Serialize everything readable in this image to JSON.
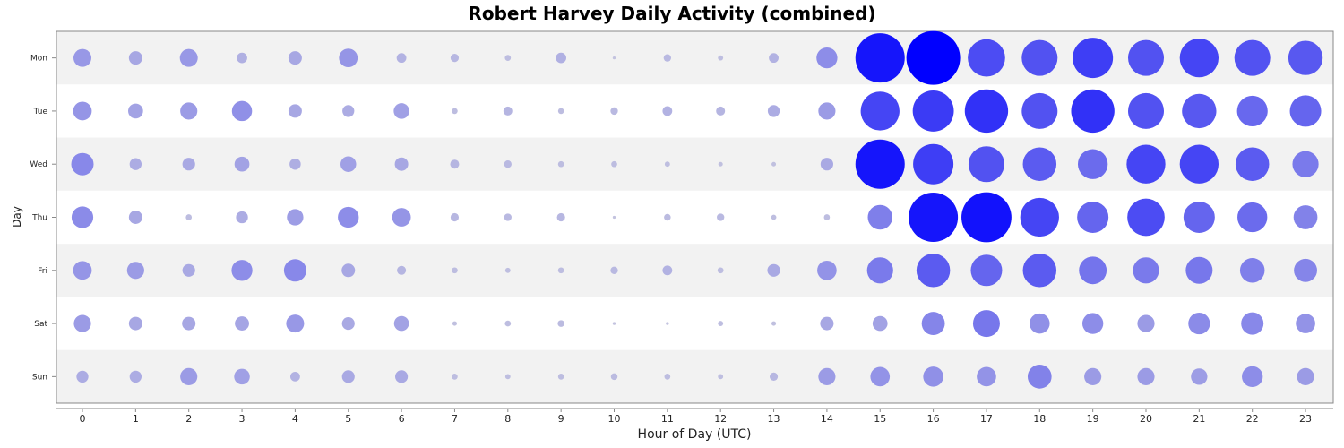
{
  "chart_data": {
    "type": "bubble",
    "title": "Robert Harvey Daily Activity (combined)",
    "xlabel": "Hour of Day (UTC)",
    "ylabel": "Day",
    "x_categories": [
      "0",
      "1",
      "2",
      "3",
      "4",
      "5",
      "6",
      "7",
      "8",
      "9",
      "10",
      "11",
      "12",
      "13",
      "14",
      "15",
      "16",
      "17",
      "18",
      "19",
      "20",
      "21",
      "22",
      "23"
    ],
    "y_categories": [
      "Mon",
      "Tue",
      "Wed",
      "Thu",
      "Fri",
      "Sat",
      "Sun"
    ],
    "grid": false,
    "values": [
      [
        24,
        18,
        24,
        14,
        18,
        25,
        13,
        11,
        8,
        14,
        4,
        10,
        7,
        13,
        28,
        66,
        72,
        50,
        48,
        54,
        48,
        52,
        48,
        46
      ],
      [
        25,
        20,
        23,
        27,
        18,
        16,
        21,
        8,
        12,
        8,
        10,
        13,
        12,
        16,
        23,
        52,
        55,
        58,
        48,
        58,
        48,
        46,
        41,
        42
      ],
      [
        30,
        16,
        17,
        20,
        15,
        21,
        18,
        12,
        10,
        8,
        8,
        7,
        6,
        6,
        17,
        66,
        54,
        48,
        45,
        40,
        52,
        52,
        45,
        35
      ],
      [
        29,
        18,
        8,
        16,
        22,
        28,
        25,
        11,
        10,
        11,
        4,
        9,
        10,
        7,
        8,
        33,
        66,
        67,
        52,
        42,
        50,
        42,
        40,
        32
      ],
      [
        25,
        23,
        17,
        28,
        30,
        18,
        12,
        8,
        7,
        8,
        10,
        13,
        8,
        17,
        26,
        35,
        45,
        42,
        45,
        37,
        35,
        36,
        33,
        31
      ],
      [
        23,
        18,
        18,
        19,
        24,
        17,
        20,
        6,
        8,
        9,
        4,
        4,
        7,
        6,
        18,
        20,
        31,
        36,
        27,
        28,
        23,
        29,
        30,
        26
      ],
      [
        16,
        16,
        23,
        21,
        13,
        17,
        17,
        8,
        7,
        8,
        9,
        8,
        7,
        11,
        23,
        26,
        27,
        26,
        32,
        23,
        23,
        22,
        28,
        23
      ]
    ]
  }
}
